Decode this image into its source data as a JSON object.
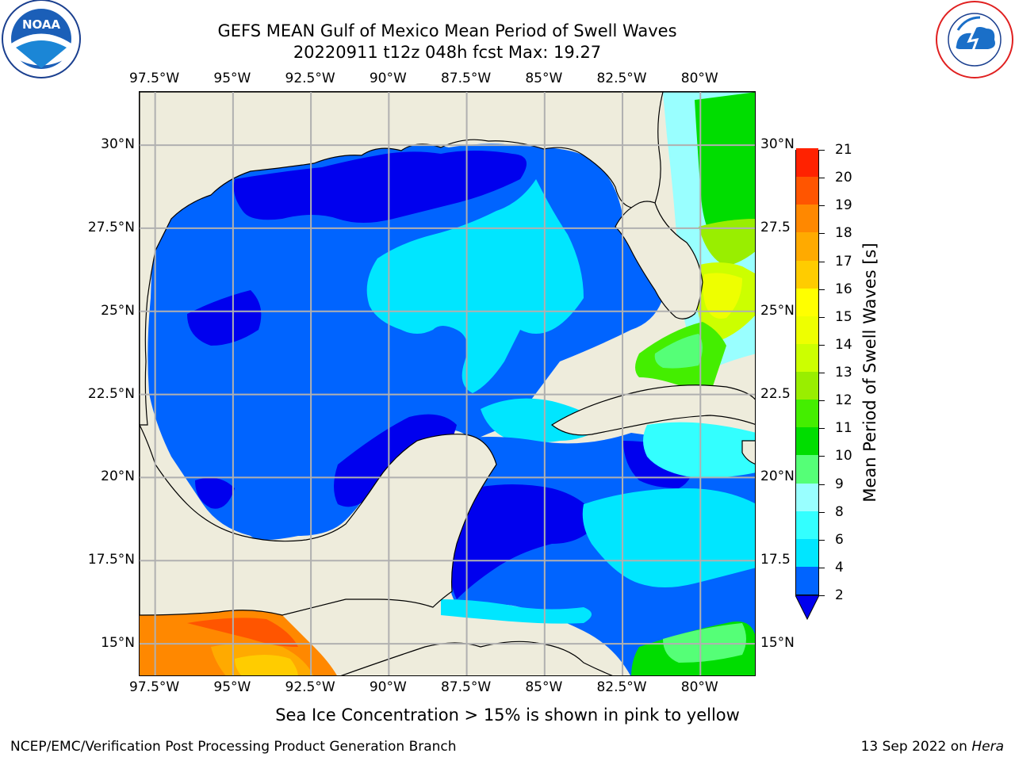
{
  "title": {
    "line1": "GEFS MEAN Gulf of Mexico Mean Period of Swell Waves",
    "line2": "20220911 t12z 048h fcst    Max: 19.27"
  },
  "logos": {
    "left": {
      "name": "noaa-logo",
      "text": "NOAA",
      "ring_text": "NATIONAL OCEANIC AND ATMOSPHERIC ADMINISTRATION · U.S. DEPARTMENT OF COMMERCE"
    },
    "right": {
      "name": "nws-logo",
      "ring_text": "NATIONAL WEATHER SERVICE"
    }
  },
  "map": {
    "lon_ticks": [
      "97.5°W",
      "95°W",
      "92.5°W",
      "90°W",
      "87.5°W",
      "85°W",
      "82.5°W",
      "80°W"
    ],
    "lon_values": [
      -97.5,
      -95,
      -92.5,
      -90,
      -87.5,
      -85,
      -82.5,
      -80
    ],
    "lat_ticks_left": [
      "30°N",
      "27.5°N",
      "25°N",
      "22.5°N",
      "20°N",
      "17.5°N",
      "15°N"
    ],
    "lat_ticks_right": [
      "30°N",
      "27.5",
      "25°N",
      "22.5",
      "20°N",
      "17.5",
      "15°N"
    ],
    "lat_values": [
      30,
      27.5,
      25,
      22.5,
      20,
      17.5,
      15
    ],
    "extent": {
      "lon_min": -98,
      "lon_max": -78.2,
      "lat_min": 14.0,
      "lat_max": 31.6
    },
    "grid": true,
    "land_color": "#eeecdc"
  },
  "colorbar": {
    "label": "Mean Period of Swell Waves [s]",
    "ticks": [
      "21",
      "20",
      "19",
      "18",
      "17",
      "16",
      "15",
      "14",
      "13",
      "12",
      "11",
      "10",
      "9",
      "8",
      "6",
      "4",
      "2"
    ],
    "levels": [
      2,
      4,
      6,
      8,
      9,
      10,
      11,
      12,
      13,
      14,
      15,
      16,
      17,
      18,
      19,
      20,
      21
    ],
    "colors": [
      "#0064ff",
      "#00e6ff",
      "#33ffff",
      "#99ffff",
      "#55ff77",
      "#00dd00",
      "#44ee00",
      "#99ee00",
      "#ccff00",
      "#eeff00",
      "#ffff00",
      "#ffcc00",
      "#ffaa00",
      "#ff8800",
      "#ff5500",
      "#ff2200"
    ],
    "extend_color": "#0000ee",
    "extend": "min"
  },
  "footnote": "Sea Ice Concentration > 15% is shown in pink to yellow",
  "credit": "NCEP/EMC/Verification Post Processing Product Generation Branch",
  "run_date": {
    "date": "13 Sep 2022 on",
    "host": "Hera"
  }
}
